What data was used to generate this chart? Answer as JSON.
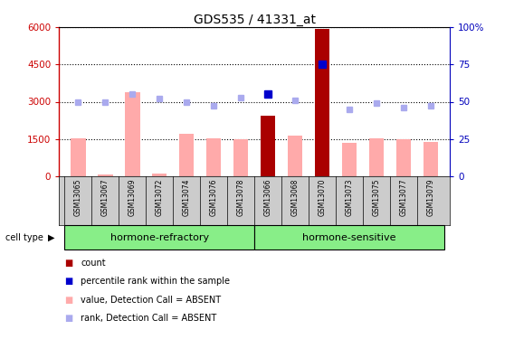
{
  "title": "GDS535 / 41331_at",
  "samples": [
    "GSM13065",
    "GSM13067",
    "GSM13069",
    "GSM13072",
    "GSM13074",
    "GSM13076",
    "GSM13078",
    "GSM13066",
    "GSM13068",
    "GSM13070",
    "GSM13073",
    "GSM13075",
    "GSM13077",
    "GSM13079"
  ],
  "bar_values": [
    1530,
    80,
    3380,
    120,
    1720,
    1530,
    1480,
    2450,
    1640,
    5940,
    1340,
    1530,
    1480,
    1380
  ],
  "bar_colors": [
    "#ffaaaa",
    "#ffaaaa",
    "#ffaaaa",
    "#ffaaaa",
    "#ffaaaa",
    "#ffaaaa",
    "#ffaaaa",
    "#aa0000",
    "#ffaaaa",
    "#aa0000",
    "#ffaaaa",
    "#ffaaaa",
    "#ffaaaa",
    "#ffaaaa"
  ],
  "rank_values": [
    50,
    50,
    55,
    52,
    50,
    47,
    53,
    55,
    51,
    75,
    45,
    49,
    46,
    47
  ],
  "rank_colors": [
    "#aaaaee",
    "#aaaaee",
    "#aaaaee",
    "#aaaaee",
    "#aaaaee",
    "#aaaaee",
    "#aaaaee",
    "#0000cc",
    "#aaaaee",
    "#0000cc",
    "#aaaaee",
    "#aaaaee",
    "#aaaaee",
    "#aaaaee"
  ],
  "ylim_left": [
    0,
    6000
  ],
  "ylim_right": [
    0,
    100
  ],
  "yticks_left": [
    0,
    1500,
    3000,
    4500,
    6000
  ],
  "yticks_right": [
    0,
    25,
    50,
    75,
    100
  ],
  "group1_label": "hormone-refractory",
  "group2_label": "hormone-sensitive",
  "group1_count": 7,
  "group2_count": 7,
  "legend_items": [
    {
      "label": "count",
      "color": "#aa0000"
    },
    {
      "label": "percentile rank within the sample",
      "color": "#0000cc"
    },
    {
      "label": "value, Detection Call = ABSENT",
      "color": "#ffaaaa"
    },
    {
      "label": "rank, Detection Call = ABSENT",
      "color": "#aaaaee"
    }
  ],
  "cell_type_label": "cell type",
  "group_bg_color": "#88ee88",
  "xtick_bg_color": "#cccccc",
  "left_axis_color": "#cc0000",
  "right_axis_color": "#0000bb",
  "bar_width": 0.55
}
